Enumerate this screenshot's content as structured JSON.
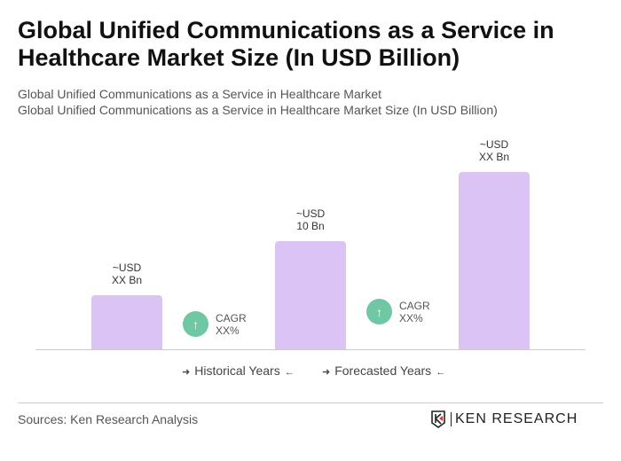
{
  "title": "Global Unified Communications as a Service in Healthcare Market Size (In USD Billion)",
  "subtitle1": "Global Unified Communications as a Service in Healthcare Market",
  "subtitle2": "Global Unified Communications as a Service in Healthcare Market Size (In USD Billion)",
  "chart_data": {
    "type": "bar",
    "categories": [
      "",
      "",
      ""
    ],
    "values": [
      5,
      10,
      16.4
    ],
    "data_labels": [
      [
        "~USD",
        "XX Bn"
      ],
      [
        "~USD",
        "10 Bn"
      ],
      [
        "~USD",
        "XX Bn"
      ]
    ],
    "bar_color": "#dcc3f6",
    "ylim": [
      0,
      16.4
    ],
    "grid": false,
    "annotations": [
      {
        "line1": "CAGR",
        "line2": "XX%"
      },
      {
        "line1": "CAGR",
        "line2": "XX%"
      }
    ],
    "legend": [
      "Historical Years",
      "Forecasted Years"
    ],
    "legend_placement": "bottom"
  },
  "icons": {
    "cagr": "arrow-up-icon",
    "legend_left": "arrow-right-icon",
    "legend_right": "arrow-left-icon"
  },
  "colors": {
    "cagr_circle": "#6fc7a3"
  },
  "source": "Sources: Ken Research Analysis",
  "logo": "KEN RESEARCH"
}
